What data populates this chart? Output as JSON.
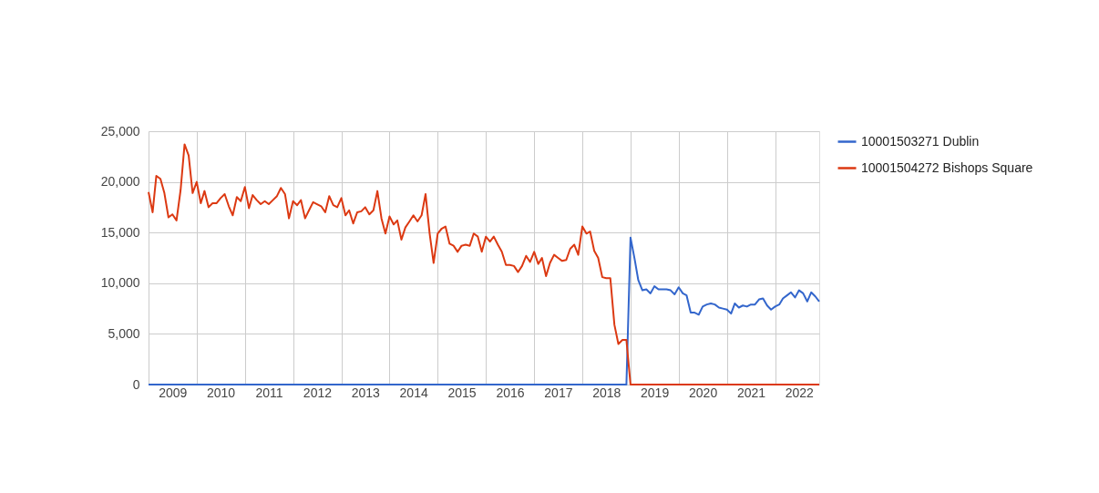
{
  "chart_data": {
    "type": "line",
    "xlim": [
      "2009-01",
      "2022-12"
    ],
    "xticks": [
      {
        "value": "2009-01",
        "label": null
      },
      {
        "value": "2009-07",
        "label": "2009"
      },
      {
        "value": "2010-01",
        "label": null
      },
      {
        "value": "2010-07",
        "label": "2010"
      },
      {
        "value": "2011-01",
        "label": null
      },
      {
        "value": "2011-07",
        "label": "2011"
      },
      {
        "value": "2012-01",
        "label": null
      },
      {
        "value": "2012-07",
        "label": "2012"
      },
      {
        "value": "2013-01",
        "label": null
      },
      {
        "value": "2013-07",
        "label": "2013"
      },
      {
        "value": "2014-01",
        "label": null
      },
      {
        "value": "2014-07",
        "label": "2014"
      },
      {
        "value": "2015-01",
        "label": null
      },
      {
        "value": "2015-07",
        "label": "2015"
      },
      {
        "value": "2016-01",
        "label": null
      },
      {
        "value": "2016-07",
        "label": "2016"
      },
      {
        "value": "2017-01",
        "label": null
      },
      {
        "value": "2017-07",
        "label": "2017"
      },
      {
        "value": "2018-01",
        "label": null
      },
      {
        "value": "2018-07",
        "label": "2018"
      },
      {
        "value": "2019-01",
        "label": null
      },
      {
        "value": "2019-07",
        "label": "2019"
      },
      {
        "value": "2020-01",
        "label": null
      },
      {
        "value": "2020-07",
        "label": "2020"
      },
      {
        "value": "2021-01",
        "label": null
      },
      {
        "value": "2021-07",
        "label": "2021"
      },
      {
        "value": "2022-01",
        "label": null
      },
      {
        "value": "2022-07",
        "label": "2022"
      }
    ],
    "ylim": [
      0,
      25000
    ],
    "yticks": [
      {
        "value": 0,
        "label": "0"
      },
      {
        "value": 5000,
        "label": "5,000"
      },
      {
        "value": 10000,
        "label": "10,000"
      },
      {
        "value": 15000,
        "label": "15,000"
      },
      {
        "value": 20000,
        "label": "20,000"
      },
      {
        "value": 25000,
        "label": "25,000"
      }
    ],
    "grid": true,
    "legend": "top right",
    "marker": "none",
    "line_style": "solid",
    "series": [
      {
        "name": "10001503271 Dublin",
        "color": "#3366cc",
        "x": [
          "2009-01",
          "2018-12",
          "2019-01",
          "2019-02",
          "2019-03",
          "2019-04",
          "2019-05",
          "2019-06",
          "2019-07",
          "2019-08",
          "2019-09",
          "2019-10",
          "2019-11",
          "2019-12",
          "2020-01",
          "2020-02",
          "2020-03",
          "2020-04",
          "2020-05",
          "2020-06",
          "2020-07",
          "2020-08",
          "2020-09",
          "2020-10",
          "2020-11",
          "2020-12",
          "2021-01",
          "2021-02",
          "2021-03",
          "2021-04",
          "2021-05",
          "2021-06",
          "2021-07",
          "2021-08",
          "2021-09",
          "2021-10",
          "2021-11",
          "2021-12",
          "2022-01",
          "2022-02",
          "2022-03",
          "2022-04",
          "2022-05",
          "2022-06",
          "2022-07",
          "2022-08",
          "2022-09",
          "2022-10",
          "2022-11",
          "2022-12"
        ],
        "values": [
          0,
          0,
          14500,
          12400,
          10300,
          9300,
          9400,
          9000,
          9700,
          9400,
          9400,
          9400,
          9300,
          8900,
          9600,
          9000,
          8800,
          7100,
          7100,
          6900,
          7700,
          7900,
          8000,
          7900,
          7600,
          7500,
          7400,
          7000,
          8000,
          7600,
          7800,
          7700,
          7900,
          7900,
          8400,
          8500,
          7800,
          7400,
          7700,
          7900,
          8500,
          8800,
          9100,
          8600,
          9300,
          9000,
          8200,
          9100,
          8700,
          8200
        ]
      },
      {
        "name": "10001504272 Bishops Square",
        "color": "#dc3912",
        "x": [
          "2009-01",
          "2009-02",
          "2009-03",
          "2009-04",
          "2009-05",
          "2009-06",
          "2009-07",
          "2009-08",
          "2009-09",
          "2009-10",
          "2009-11",
          "2009-12",
          "2010-01",
          "2010-02",
          "2010-03",
          "2010-04",
          "2010-05",
          "2010-06",
          "2010-07",
          "2010-08",
          "2010-09",
          "2010-10",
          "2010-11",
          "2010-12",
          "2011-01",
          "2011-02",
          "2011-03",
          "2011-04",
          "2011-05",
          "2011-06",
          "2011-07",
          "2011-08",
          "2011-09",
          "2011-10",
          "2011-11",
          "2011-12",
          "2012-01",
          "2012-02",
          "2012-03",
          "2012-04",
          "2012-05",
          "2012-06",
          "2012-07",
          "2012-08",
          "2012-09",
          "2012-10",
          "2012-11",
          "2012-12",
          "2013-01",
          "2013-02",
          "2013-03",
          "2013-04",
          "2013-05",
          "2013-06",
          "2013-07",
          "2013-08",
          "2013-09",
          "2013-10",
          "2013-11",
          "2013-12",
          "2014-01",
          "2014-02",
          "2014-03",
          "2014-04",
          "2014-05",
          "2014-06",
          "2014-07",
          "2014-08",
          "2014-09",
          "2014-10",
          "2014-11",
          "2014-12",
          "2015-01",
          "2015-02",
          "2015-03",
          "2015-04",
          "2015-05",
          "2015-06",
          "2015-07",
          "2015-08",
          "2015-09",
          "2015-10",
          "2015-11",
          "2015-12",
          "2016-01",
          "2016-02",
          "2016-03",
          "2016-04",
          "2016-05",
          "2016-06",
          "2016-07",
          "2016-08",
          "2016-09",
          "2016-10",
          "2016-11",
          "2016-12",
          "2017-01",
          "2017-02",
          "2017-03",
          "2017-04",
          "2017-05",
          "2017-06",
          "2017-07",
          "2017-08",
          "2017-09",
          "2017-10",
          "2017-11",
          "2017-12",
          "2018-01",
          "2018-02",
          "2018-03",
          "2018-04",
          "2018-05",
          "2018-06",
          "2018-07",
          "2018-08",
          "2018-09",
          "2018-10",
          "2018-11",
          "2018-12",
          "2019-01",
          "2022-12"
        ],
        "values": [
          19000,
          17000,
          20600,
          20300,
          18900,
          16500,
          16800,
          16200,
          19200,
          23700,
          22600,
          18900,
          20000,
          17900,
          19100,
          17500,
          17900,
          17900,
          18400,
          18800,
          17600,
          16700,
          18500,
          18100,
          19500,
          17400,
          18700,
          18200,
          17800,
          18100,
          17800,
          18200,
          18600,
          19400,
          18800,
          16400,
          18100,
          17700,
          18200,
          16400,
          17200,
          18000,
          17800,
          17600,
          17000,
          18600,
          17700,
          17500,
          18400,
          16700,
          17200,
          15900,
          17000,
          17100,
          17500,
          16800,
          17200,
          19100,
          16400,
          14900,
          16600,
          15800,
          16200,
          14300,
          15500,
          16100,
          16700,
          16100,
          16700,
          18800,
          14900,
          12000,
          14900,
          15400,
          15600,
          13900,
          13700,
          13100,
          13700,
          13800,
          13700,
          14900,
          14600,
          13100,
          14600,
          14100,
          14600,
          13800,
          13100,
          11800,
          11800,
          11700,
          11100,
          11700,
          12700,
          12100,
          13100,
          11900,
          12500,
          10700,
          12000,
          12800,
          12500,
          12200,
          12300,
          13400,
          13800,
          12800,
          15600,
          14900,
          15100,
          13200,
          12500,
          10600,
          10500,
          10500,
          5900,
          4000,
          4400,
          4400,
          0,
          0
        ]
      }
    ]
  }
}
